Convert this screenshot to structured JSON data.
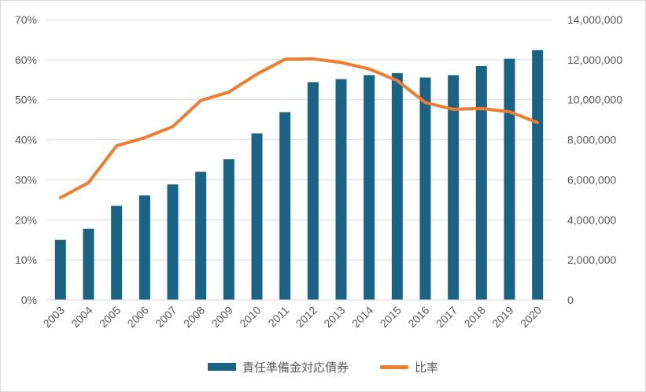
{
  "chart_data": {
    "type": "bar",
    "categories": [
      "2003",
      "2004",
      "2005",
      "2006",
      "2007",
      "2008",
      "2009",
      "2010",
      "2011",
      "2012",
      "2013",
      "2014",
      "2015",
      "2016",
      "2017",
      "2018",
      "2019",
      "2020"
    ],
    "series": [
      {
        "name": "責任準備金対応債券",
        "type": "bar",
        "axis": "right",
        "color": "#1b6385",
        "values": [
          3000000,
          3550000,
          4700000,
          5220000,
          5770000,
          6400000,
          7030000,
          8320000,
          9380000,
          10880000,
          11030000,
          11230000,
          11330000,
          11110000,
          11230000,
          11680000,
          12050000,
          12480000
        ]
      },
      {
        "name": "比率",
        "type": "line",
        "axis": "left",
        "color": "#ed7d31",
        "values": [
          25.5,
          29.3,
          38.5,
          40.5,
          43.3,
          49.8,
          51.9,
          56.4,
          60.1,
          60.2,
          59.3,
          57.7,
          54.8,
          49.3,
          47.6,
          47.8,
          47.0,
          44.3
        ]
      }
    ],
    "y_left": {
      "min": 0,
      "max": 70,
      "step": 10,
      "tick_labels": [
        "0%",
        "10%",
        "20%",
        "30%",
        "40%",
        "50%",
        "60%",
        "70%"
      ]
    },
    "y_right": {
      "min": 0,
      "max": 14000000,
      "step": 2000000,
      "tick_labels": [
        "0",
        "2,000,000",
        "4,000,000",
        "6,000,000",
        "8,000,000",
        "10,000,000",
        "12,000,000",
        "14,000,000"
      ]
    },
    "grid": true,
    "legend": "bottom"
  }
}
